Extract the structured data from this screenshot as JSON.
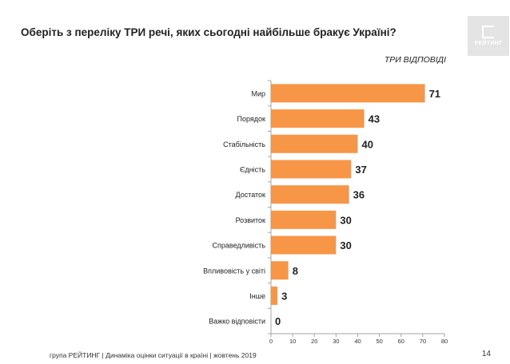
{
  "title": "Оберіть з переліку ТРИ речі, яких сьогодні найбільше бракує Україні?",
  "logo_text": "РЕЙТИНГ",
  "subtitle": "ТРИ ВІДПОВІДІ",
  "footer": "група РЕЙТИНГ |  Динаміка оцінки ситуації в країні  |  жовтень  2019",
  "page_number": "14",
  "colors": {
    "bar": "#f79646",
    "axis": "#a6a6a6"
  },
  "chart_data": {
    "type": "bar",
    "orientation": "horizontal",
    "categories": [
      "Мир",
      "Порядок",
      "Стабільність",
      "Єдність",
      "Достаток",
      "Розвиток",
      "Справедливість",
      "Впливовість у світі",
      "Інше",
      "Важко відповісти"
    ],
    "values": [
      71,
      43,
      40,
      37,
      36,
      30,
      30,
      8,
      3,
      0
    ],
    "xlim": [
      0,
      80
    ],
    "xticks": [
      0,
      10,
      20,
      30,
      40,
      50,
      60,
      70,
      80
    ],
    "grid": false,
    "data_labels": true
  }
}
